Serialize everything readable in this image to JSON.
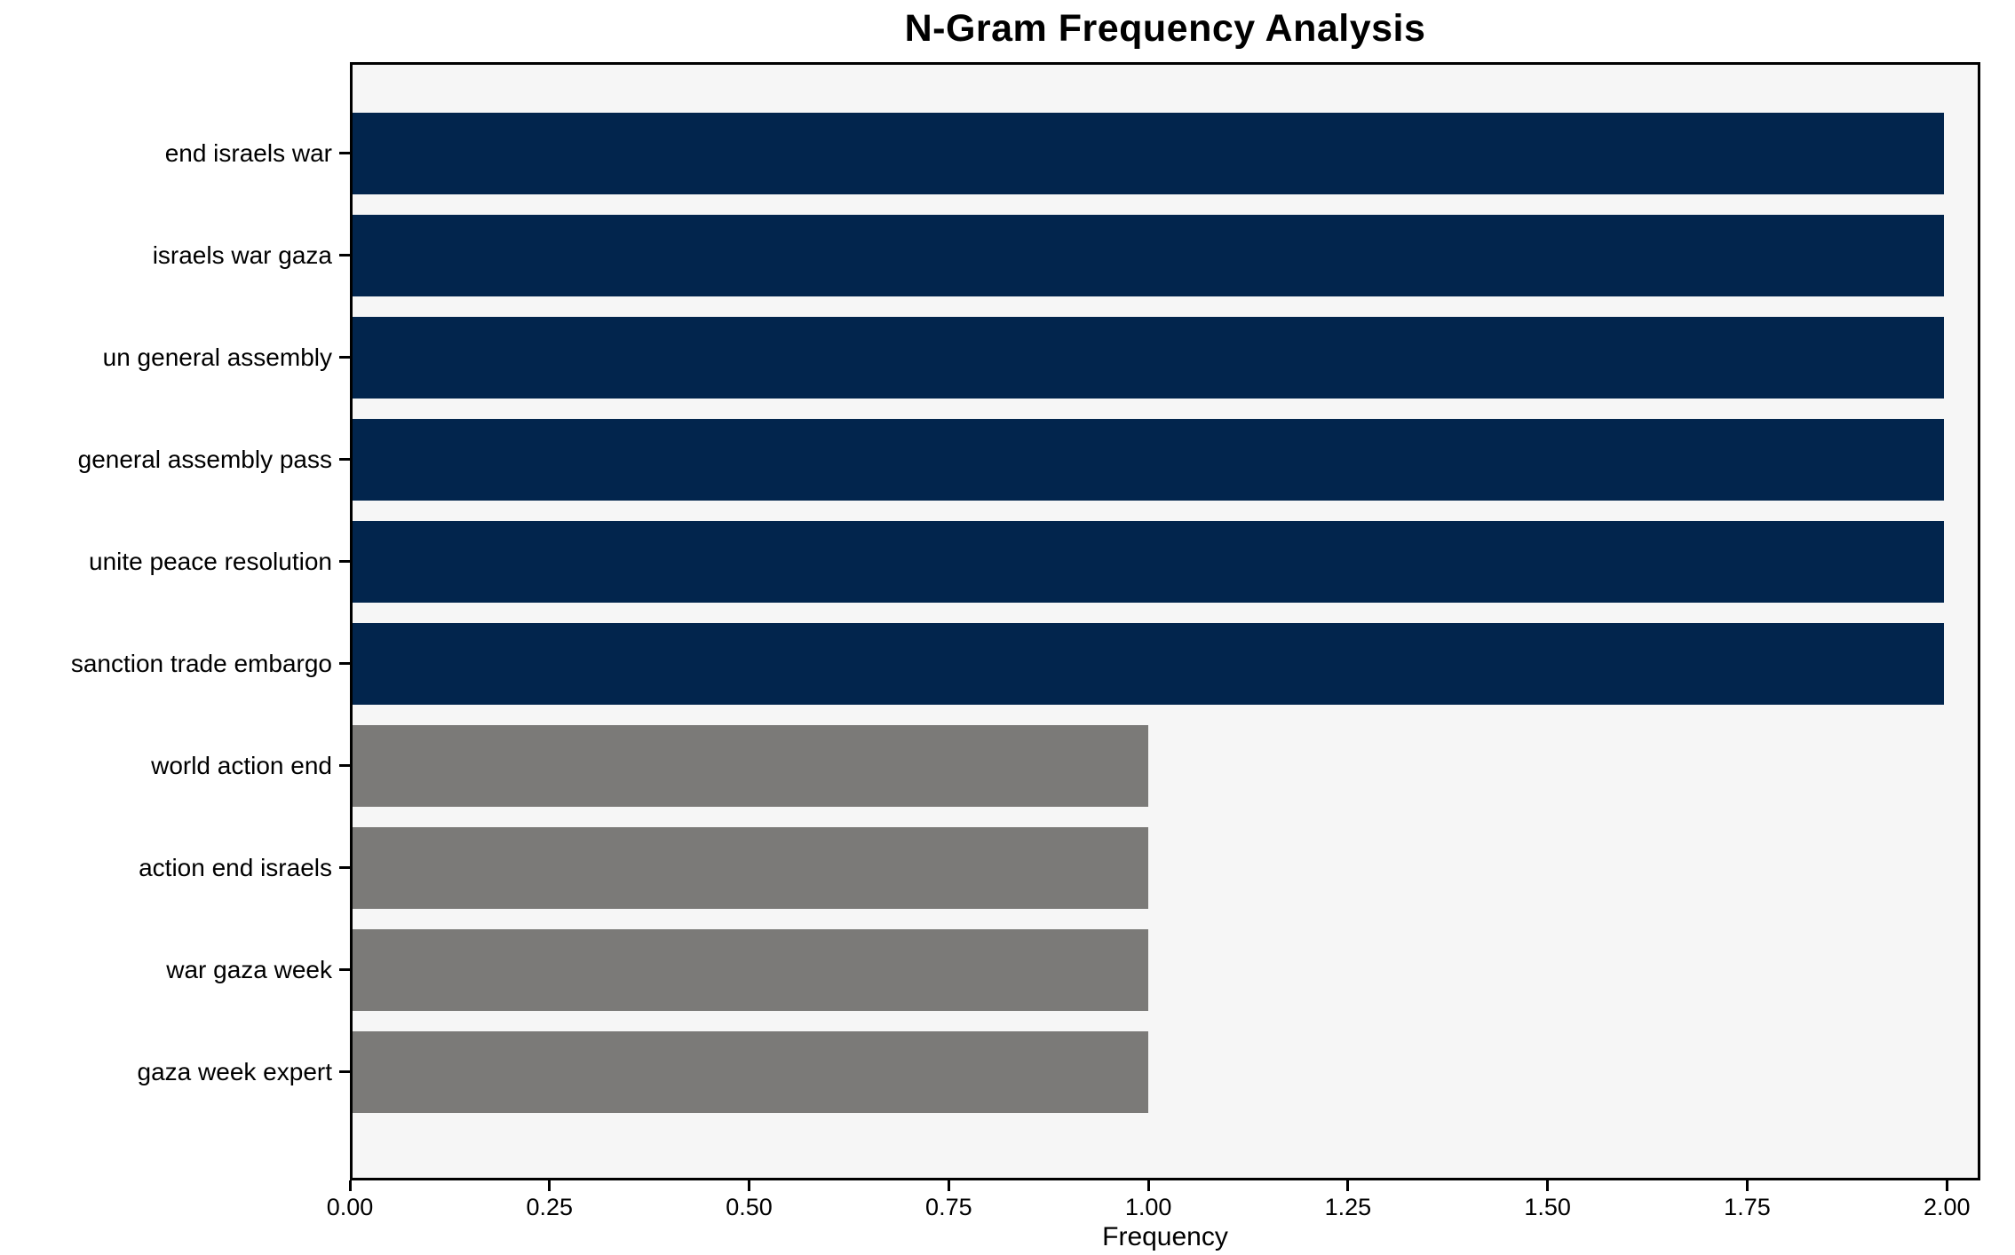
{
  "chart_data": {
    "type": "bar",
    "orientation": "horizontal",
    "title": "N-Gram Frequency Analysis",
    "xlabel": "Frequency",
    "ylabel": "",
    "categories": [
      "end israels war",
      "israels war gaza",
      "un general assembly",
      "general assembly pass",
      "unite peace resolution",
      "sanction trade embargo",
      "world action end",
      "action end israels",
      "war gaza week",
      "gaza week expert"
    ],
    "values": [
      2,
      2,
      2,
      2,
      2,
      2,
      1,
      1,
      1,
      1
    ],
    "bar_colors": [
      "#02254d",
      "#02254d",
      "#02254d",
      "#02254d",
      "#02254d",
      "#02254d",
      "#7b7a78",
      "#7b7a78",
      "#7b7a78",
      "#7b7a78"
    ],
    "xlim": [
      0,
      2.042
    ],
    "x_ticks": [
      "0.00",
      "0.25",
      "0.50",
      "0.75",
      "1.00",
      "1.25",
      "1.50",
      "1.75",
      "2.00"
    ],
    "x_tick_values": [
      0,
      0.25,
      0.5,
      0.75,
      1.0,
      1.25,
      1.5,
      1.75,
      2.0
    ],
    "grid": false,
    "legend": null,
    "colors": {
      "bar_high": "#02254d",
      "bar_low": "#7b7a78",
      "plot_background": "#f6f6f6",
      "figure_background": "#ffffff",
      "spine": "#000000",
      "text": "#000000"
    }
  }
}
